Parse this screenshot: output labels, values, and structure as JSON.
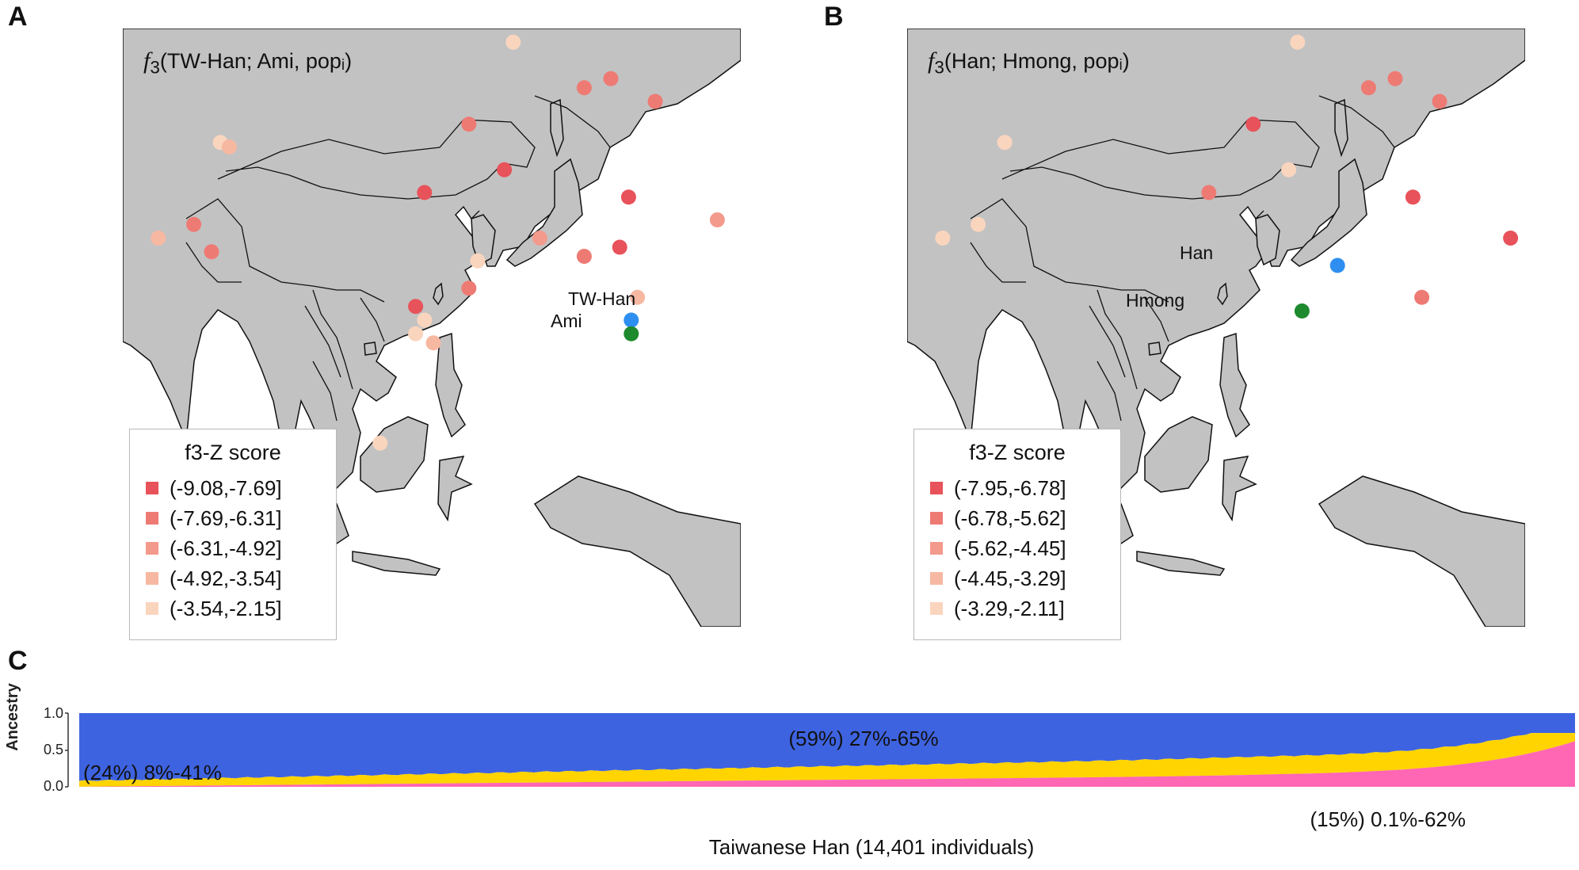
{
  "panels": {
    "a": {
      "letter": "A",
      "title_fn": "f",
      "title_sub": "3",
      "title_rest": "(TW-Han; Ami, popᵢ)",
      "legend_title": "f3-Z score",
      "legend": [
        {
          "range": "(-9.08,-7.69]",
          "color": "#e8525a"
        },
        {
          "range": "(-7.69,-6.31]",
          "color": "#ee7a74"
        },
        {
          "range": "(-6.31,-4.92]",
          "color": "#f39a8c"
        },
        {
          "range": "(-4.92,-3.54]",
          "color": "#f7b8a2"
        },
        {
          "range": "(-3.54,-2.15]",
          "color": "#fad5be"
        }
      ],
      "populations": [
        {
          "name": "TW-Han",
          "color": "#2e8ff0",
          "lon": 121.3,
          "lat": 25.0
        },
        {
          "name": "Ami",
          "color": "#1e8a2e",
          "lon": 121.3,
          "lat": 23.5
        }
      ]
    },
    "b": {
      "letter": "B",
      "title_fn": "f",
      "title_sub": "3",
      "title_rest": "(Han; Hmong, popᵢ)",
      "legend_title": "f3-Z score",
      "legend": [
        {
          "range": "(-7.95,-6.78]",
          "color": "#e8525a"
        },
        {
          "range": "(-6.78,-5.62]",
          "color": "#ee7a74"
        },
        {
          "range": "(-5.62,-4.45]",
          "color": "#f39a8c"
        },
        {
          "range": "(-4.45,-3.29]",
          "color": "#f7b8a2"
        },
        {
          "range": "(-3.29,-2.11]",
          "color": "#fad5be"
        }
      ],
      "populations": [
        {
          "name": "Han",
          "color": "#2e8ff0",
          "lon": 112.5,
          "lat": 31.0
        },
        {
          "name": "Hmong",
          "color": "#1e8a2e",
          "lon": 108.5,
          "lat": 26.0
        }
      ]
    },
    "c": {
      "letter": "C",
      "y_label": "Ancestry",
      "y_ticks": [
        "0.0",
        "0.5",
        "1.0"
      ],
      "x_label": "Taiwanese Han (14,401 individuals)",
      "components": [
        {
          "label": "(59%) 27%-65%",
          "color": "#3e63e0",
          "mean": 0.59,
          "min": 0.27,
          "max": 0.65
        },
        {
          "label": "(24%) 8%-41%",
          "color": "#ffd400",
          "mean": 0.24,
          "min": 0.08,
          "max": 0.41
        },
        {
          "label": "(15%) 0.1%-62%",
          "color": "#ff66b3",
          "mean": 0.15,
          "min": 0.001,
          "max": 0.62
        }
      ]
    }
  },
  "chart_data": {
    "type": "area",
    "x_label": "Taiwanese Han (14,401 individuals)",
    "y_label": "Ancestry",
    "ylim": [
      0,
      1
    ],
    "series": [
      {
        "name": "(15%) 0.1%-62%",
        "color": "#ff66b3",
        "mean": 0.15,
        "min": 0.001,
        "max": 0.62
      },
      {
        "name": "(24%) 8%-41%",
        "color": "#ffd400",
        "mean": 0.24,
        "min": 0.08,
        "max": 0.41
      },
      {
        "name": "(59%) 27%-65%",
        "color": "#3e63e0",
        "mean": 0.59,
        "min": 0.27,
        "max": 0.65
      }
    ]
  }
}
